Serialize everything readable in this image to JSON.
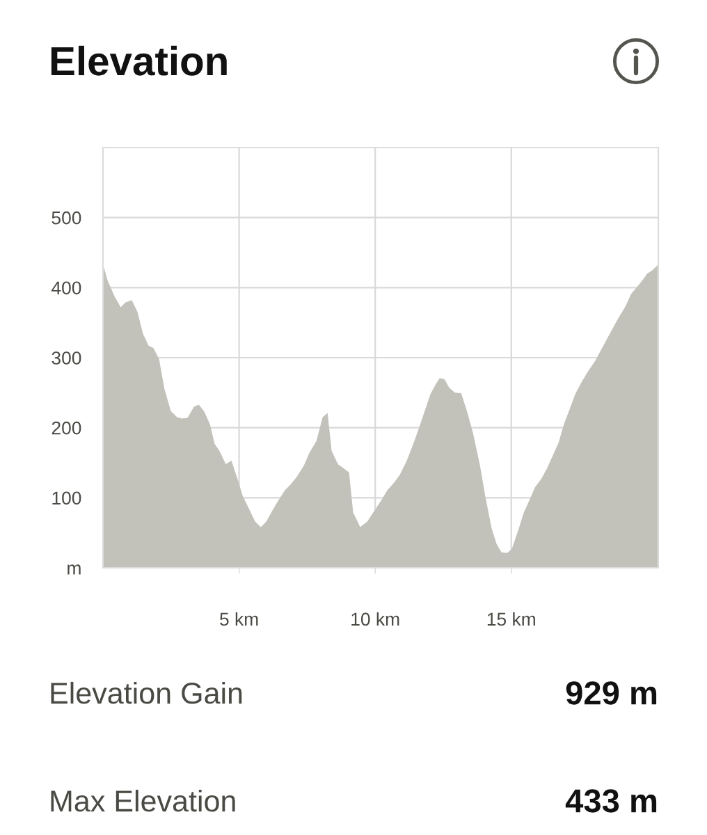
{
  "chart_data": {
    "type": "area",
    "title": "Elevation",
    "x": [
      0,
      0.17,
      0.42,
      0.65,
      0.83,
      1.06,
      1.27,
      1.47,
      1.68,
      1.85,
      2.06,
      2.26,
      2.49,
      2.72,
      2.9,
      3.11,
      3.34,
      3.52,
      3.72,
      3.93,
      4.1,
      4.28,
      4.51,
      4.72,
      4.95,
      5.13,
      5.38,
      5.59,
      5.8,
      6.0,
      6.21,
      6.44,
      6.69,
      6.89,
      7.12,
      7.38,
      7.58,
      7.84,
      8.07,
      8.25,
      8.4,
      8.63,
      8.84,
      9.04,
      9.19,
      9.45,
      9.71,
      9.96,
      10.22,
      10.45,
      10.68,
      10.91,
      11.16,
      11.42,
      11.62,
      11.83,
      12.03,
      12.24,
      12.37,
      12.55,
      12.72,
      12.93,
      13.16,
      13.36,
      13.59,
      13.85,
      14.05,
      14.28,
      14.46,
      14.64,
      14.85,
      15.02,
      15.25,
      15.46,
      15.66,
      15.87,
      16.1,
      16.3,
      16.51,
      16.74,
      16.94,
      17.15,
      17.35,
      17.58,
      17.81,
      18.09,
      18.35,
      18.63,
      18.91,
      19.19,
      19.4,
      19.6,
      19.83,
      19.99,
      20.19,
      20.4
    ],
    "values": [
      433,
      410,
      388,
      372,
      379,
      382,
      365,
      334,
      317,
      314,
      298,
      255,
      224,
      215,
      213,
      214,
      230,
      233,
      223,
      205,
      177,
      167,
      148,
      153,
      126,
      103,
      83,
      66,
      58,
      66,
      81,
      96,
      111,
      119,
      130,
      146,
      164,
      181,
      215,
      221,
      167,
      148,
      142,
      136,
      79,
      58,
      66,
      81,
      96,
      111,
      121,
      133,
      153,
      179,
      201,
      225,
      248,
      263,
      271,
      269,
      257,
      250,
      249,
      225,
      193,
      146,
      101,
      56,
      34,
      22,
      21,
      27,
      53,
      79,
      96,
      115,
      127,
      141,
      159,
      179,
      206,
      227,
      248,
      265,
      280,
      296,
      315,
      335,
      355,
      373,
      391,
      400,
      411,
      420,
      425,
      433
    ],
    "color": "#c2c2bb",
    "xlim": [
      0,
      20.4
    ],
    "ylim": [
      0,
      600
    ],
    "xticks": [
      {
        "value": 5,
        "label": "5 km"
      },
      {
        "value": 10,
        "label": "10 km"
      },
      {
        "value": 15,
        "label": "15 km"
      }
    ],
    "yticks": [
      {
        "value": 0,
        "label": "m"
      },
      100,
      200,
      300,
      400,
      500
    ],
    "grid": true,
    "annotations": [
      "Elevation Gain",
      "929 m",
      "Max Elevation",
      "433 m"
    ]
  }
}
